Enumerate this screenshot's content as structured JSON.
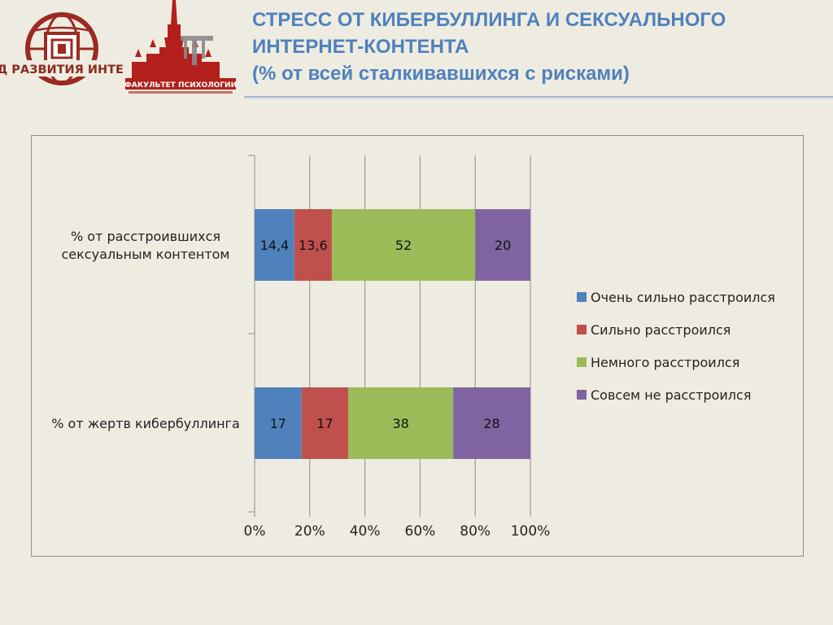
{
  "title": {
    "line1": "СТРЕСС ОТ КИБЕРБУЛЛИНГА И СЕКСУАЛЬНОГО",
    "line2": "ИНТЕРНЕТ-КОНТЕНТА",
    "line3": "(% от всей сталкивавшихся с рисками)"
  },
  "logos": {
    "fund_text": "ФОНД РАЗВИТИЯ ИНТЕРНЕТ",
    "faculty_text": "ФАКУЛЬТЕТ ПСИХОЛОГИИ"
  },
  "chart_data": {
    "type": "bar",
    "orientation": "horizontal",
    "stacked": "percent",
    "categories": [
      "% от расстроившихся сексуальным контентом",
      "% от жертв кибербуллинга"
    ],
    "category_lines": [
      [
        "% от расстроившихся",
        "сексуальным контентом"
      ],
      [
        "% от жертв кибербуллинга"
      ]
    ],
    "series": [
      {
        "name": "Очень сильно расстроился",
        "values": [
          14.4,
          17
        ],
        "labels": [
          "14,4",
          "17"
        ],
        "color": "#4f81bd"
      },
      {
        "name": "Сильно расстроился",
        "values": [
          13.6,
          17
        ],
        "labels": [
          "13,6",
          "17"
        ],
        "color": "#c0504d"
      },
      {
        "name": "Немного расстроился",
        "values": [
          52,
          38
        ],
        "labels": [
          "52",
          "38"
        ],
        "color": "#9bbb59"
      },
      {
        "name": "Совсем не расстроился",
        "values": [
          20,
          28
        ],
        "labels": [
          "20",
          "28"
        ],
        "color": "#8064a2"
      }
    ],
    "xlim": [
      0,
      100
    ],
    "xticks": [
      "0%",
      "20%",
      "40%",
      "60%",
      "80%",
      "100%"
    ],
    "grid": true,
    "legend": "right"
  }
}
